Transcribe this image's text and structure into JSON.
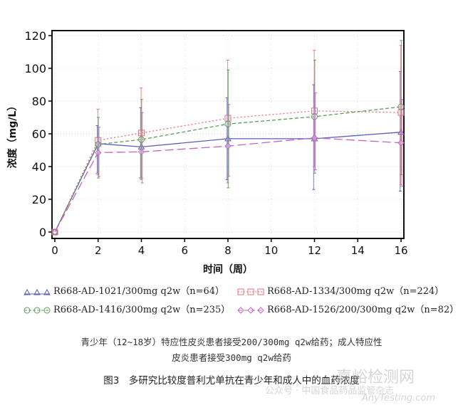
{
  "chart_data": {
    "type": "line",
    "xlabel": "时间（周）",
    "ylabel": "浓度（mg/L）",
    "xlim": [
      0,
      16
    ],
    "ylim": [
      0,
      120
    ],
    "xticks": [
      0,
      2,
      4,
      6,
      8,
      10,
      12,
      14,
      16
    ],
    "yticks": [
      0,
      20,
      40,
      60,
      80,
      100,
      120
    ],
    "grid": true,
    "legend_position": "bottom",
    "x": [
      0,
      2,
      4,
      8,
      12,
      16
    ],
    "series": [
      {
        "name": "R668-AD-1021/300mg q2w（n=64）",
        "color": "#5b5fb5",
        "marker": "triangle",
        "dash": "",
        "values": [
          0,
          54,
          52,
          57,
          57,
          61
        ],
        "low": [
          0,
          36,
          33,
          32,
          26,
          25
        ],
        "high": [
          0,
          65,
          76,
          82,
          90,
          98
        ]
      },
      {
        "name": "R668-AD-1334/300mg q2w（n=224）",
        "color": "#e8707a",
        "marker": "square",
        "dash": "2,3",
        "values": [
          0,
          56,
          60.5,
          69.5,
          74,
          73
        ],
        "low": [
          0,
          35,
          32,
          30,
          40,
          29
        ],
        "high": [
          0,
          75,
          88,
          105,
          111,
          114
        ]
      },
      {
        "name": "R668-AD-1416/300mg q2w（n=235）",
        "color": "#5e9a5e",
        "marker": "circle",
        "dash": "5,3",
        "values": [
          0,
          53.5,
          56.5,
          66,
          70.5,
          76.5
        ],
        "low": [
          0,
          33,
          33,
          27,
          36,
          35
        ],
        "high": [
          0,
          70,
          81,
          99,
          105,
          117
        ]
      },
      {
        "name": "R668-AD-1526/200/300mg q2w（n=82）",
        "color": "#c066c0",
        "marker": "diamond",
        "dash": "12,5",
        "values": [
          0,
          48.5,
          49,
          52.5,
          57.5,
          54.5
        ],
        "low": [
          0,
          34,
          30,
          34,
          38,
          28
        ],
        "high": [
          0,
          64,
          73,
          78,
          85,
          81
        ]
      }
    ]
  },
  "note_line1": "青少年（12~18岁）特应性皮炎患者接受200/300mg q2w给药；成人特应性",
  "note_line2": "皮炎患者接受300mg q2w给药",
  "caption": "图3　多研究比较度普利尤单抗在青少年和成人中的血药浓度",
  "watermark1": "嘉峪检测网",
  "watermark2": "公众号 · 中国食品药品监管杂志",
  "watermark3": "AnyTesting.com"
}
